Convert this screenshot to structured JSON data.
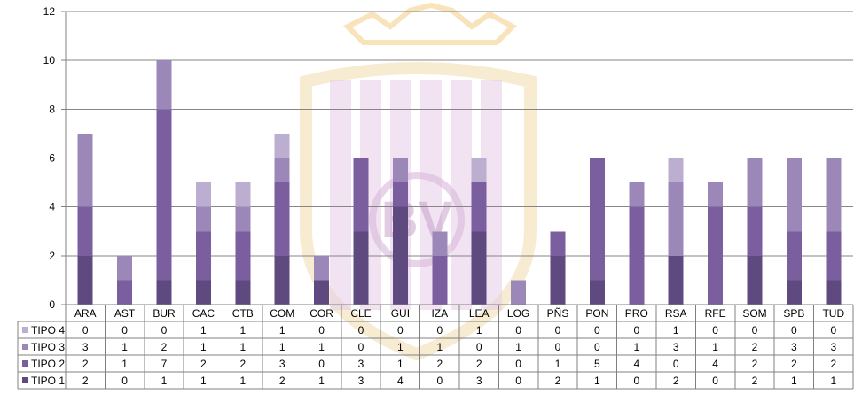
{
  "chart_data": {
    "type": "bar",
    "stacked": true,
    "categories": [
      "ARA",
      "AST",
      "BUR",
      "CAC",
      "CTB",
      "COM",
      "COR",
      "CLE",
      "GUI",
      "IZA",
      "LEA",
      "LOG",
      "PÑS",
      "PON",
      "PRO",
      "RSA",
      "RFE",
      "SOM",
      "SPB",
      "TUD"
    ],
    "series": [
      {
        "name": "TIPO 1",
        "color": "#5e4a7e",
        "values": [
          2,
          0,
          1,
          1,
          1,
          2,
          1,
          3,
          4,
          0,
          3,
          0,
          2,
          1,
          0,
          2,
          0,
          2,
          1,
          1
        ]
      },
      {
        "name": "TIPO 2",
        "color": "#7a5e9e",
        "values": [
          2,
          1,
          7,
          2,
          2,
          3,
          0,
          3,
          1,
          2,
          2,
          0,
          1,
          5,
          4,
          0,
          4,
          2,
          2,
          2
        ]
      },
      {
        "name": "TIPO 3",
        "color": "#9c88b8",
        "values": [
          3,
          1,
          2,
          1,
          1,
          1,
          1,
          0,
          1,
          1,
          0,
          1,
          0,
          0,
          1,
          3,
          1,
          2,
          3,
          3
        ]
      },
      {
        "name": "TIPO 4",
        "color": "#bcaed0",
        "values": [
          0,
          0,
          0,
          1,
          1,
          1,
          0,
          0,
          0,
          0,
          1,
          0,
          0,
          0,
          0,
          1,
          0,
          0,
          0,
          0
        ]
      }
    ],
    "ylim": [
      0,
      12
    ],
    "yticks": [
      0,
      2,
      4,
      6,
      8,
      10,
      12
    ],
    "grid": true,
    "legend": "data-table-bottom",
    "table_row_order": [
      "TIPO 4",
      "TIPO 3",
      "TIPO 2",
      "TIPO 1"
    ]
  },
  "watermark": {
    "monogram": "BV",
    "crown_color": "#f7d9a4",
    "shield_color": "#f4e2bf",
    "stripe_color": "#e6cce8"
  }
}
